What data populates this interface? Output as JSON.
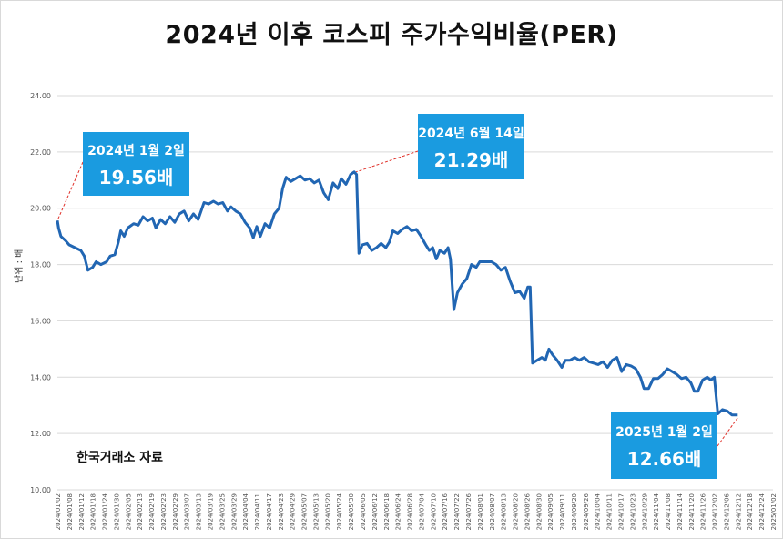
{
  "title": "2024년 이후 코스피 주가수익비율(PER)",
  "source_note": "한국거래소 자료",
  "chart_data": {
    "type": "line",
    "title": "2024년 이후 코스피 주가수익비율(PER)",
    "ylabel": "단위 : 배",
    "xlabel": "",
    "ylim": [
      10,
      24
    ],
    "yticks": [
      "10.00",
      "12.00",
      "14.00",
      "16.00",
      "18.00",
      "20.00",
      "22.00",
      "24.00"
    ],
    "grid": "horizontal",
    "line_color": "#2166b3",
    "x_tick_labels": [
      "2024/01/02",
      "2024/01/08",
      "2024/01/12",
      "2024/01/18",
      "2024/01/24",
      "2024/01/30",
      "2024/02/05",
      "2024/02/13",
      "2024/02/19",
      "2024/02/23",
      "2024/02/29",
      "2024/03/07",
      "2024/03/13",
      "2024/03/19",
      "2024/03/25",
      "2024/03/29",
      "2024/04/04",
      "2024/04/11",
      "2024/04/17",
      "2024/04/23",
      "2024/04/29",
      "2024/05/07",
      "2024/05/13",
      "2024/05/20",
      "2024/05/24",
      "2024/05/30",
      "2024/06/05",
      "2024/06/12",
      "2024/06/18",
      "2024/06/24",
      "2024/06/28",
      "2024/07/04",
      "2024/07/10",
      "2024/07/16",
      "2024/07/22",
      "2024/07/26",
      "2024/08/01",
      "2024/08/07",
      "2024/08/13",
      "2024/08/20",
      "2024/08/26",
      "2024/08/30",
      "2024/09/05",
      "2024/09/11",
      "2024/09/20",
      "2024/09/26",
      "2024/10/04",
      "2024/10/11",
      "2024/10/17",
      "2024/10/23",
      "2024/10/29",
      "2024/11/04",
      "2024/11/08",
      "2024/11/14",
      "2024/11/20",
      "2024/11/26",
      "2024/12/02",
      "2024/12/06",
      "2024/12/12",
      "2024/12/18",
      "2024/12/24",
      "2025/01/02"
    ],
    "points": [
      [
        0,
        19.56
      ],
      [
        0.1,
        19.3
      ],
      [
        0.3,
        19.0
      ],
      [
        0.7,
        18.85
      ],
      [
        1.0,
        18.7
      ],
      [
        1.5,
        18.6
      ],
      [
        2.0,
        18.5
      ],
      [
        2.3,
        18.3
      ],
      [
        2.6,
        17.8
      ],
      [
        3.0,
        17.9
      ],
      [
        3.3,
        18.1
      ],
      [
        3.7,
        18.0
      ],
      [
        4.2,
        18.1
      ],
      [
        4.5,
        18.3
      ],
      [
        4.9,
        18.35
      ],
      [
        5.2,
        18.8
      ],
      [
        5.4,
        19.2
      ],
      [
        5.7,
        19.0
      ],
      [
        6.0,
        19.3
      ],
      [
        6.5,
        19.45
      ],
      [
        6.9,
        19.4
      ],
      [
        7.3,
        19.7
      ],
      [
        7.7,
        19.55
      ],
      [
        8.1,
        19.65
      ],
      [
        8.4,
        19.3
      ],
      [
        8.8,
        19.6
      ],
      [
        9.2,
        19.45
      ],
      [
        9.6,
        19.7
      ],
      [
        10.0,
        19.5
      ],
      [
        10.4,
        19.8
      ],
      [
        10.8,
        19.9
      ],
      [
        11.2,
        19.55
      ],
      [
        11.6,
        19.8
      ],
      [
        12.0,
        19.6
      ],
      [
        12.5,
        20.2
      ],
      [
        12.9,
        20.15
      ],
      [
        13.3,
        20.25
      ],
      [
        13.7,
        20.15
      ],
      [
        14.1,
        20.2
      ],
      [
        14.5,
        19.9
      ],
      [
        14.8,
        20.05
      ],
      [
        15.2,
        19.9
      ],
      [
        15.6,
        19.8
      ],
      [
        16.0,
        19.5
      ],
      [
        16.4,
        19.3
      ],
      [
        16.7,
        18.95
      ],
      [
        17.0,
        19.35
      ],
      [
        17.3,
        19.0
      ],
      [
        17.7,
        19.45
      ],
      [
        18.1,
        19.3
      ],
      [
        18.5,
        19.8
      ],
      [
        18.9,
        20.0
      ],
      [
        19.2,
        20.7
      ],
      [
        19.5,
        21.1
      ],
      [
        19.9,
        20.95
      ],
      [
        20.3,
        21.05
      ],
      [
        20.7,
        21.15
      ],
      [
        21.1,
        21.0
      ],
      [
        21.5,
        21.05
      ],
      [
        21.9,
        20.9
      ],
      [
        22.3,
        21.0
      ],
      [
        22.7,
        20.55
      ],
      [
        23.1,
        20.3
      ],
      [
        23.5,
        20.9
      ],
      [
        23.9,
        20.7
      ],
      [
        24.2,
        21.05
      ],
      [
        24.6,
        20.85
      ],
      [
        25.0,
        21.2
      ],
      [
        25.3,
        21.29
      ],
      [
        25.5,
        21.2
      ],
      [
        25.7,
        18.4
      ],
      [
        26.0,
        18.7
      ],
      [
        26.4,
        18.75
      ],
      [
        26.8,
        18.5
      ],
      [
        27.2,
        18.6
      ],
      [
        27.6,
        18.75
      ],
      [
        28.0,
        18.6
      ],
      [
        28.3,
        18.8
      ],
      [
        28.6,
        19.2
      ],
      [
        29.0,
        19.1
      ],
      [
        29.4,
        19.25
      ],
      [
        29.8,
        19.35
      ],
      [
        30.2,
        19.2
      ],
      [
        30.6,
        19.25
      ],
      [
        31.0,
        19.0
      ],
      [
        31.4,
        18.7
      ],
      [
        31.7,
        18.5
      ],
      [
        32.0,
        18.6
      ],
      [
        32.3,
        18.2
      ],
      [
        32.6,
        18.5
      ],
      [
        33.0,
        18.4
      ],
      [
        33.3,
        18.6
      ],
      [
        33.5,
        18.2
      ],
      [
        33.8,
        16.4
      ],
      [
        34.1,
        17.0
      ],
      [
        34.5,
        17.3
      ],
      [
        34.9,
        17.5
      ],
      [
        35.3,
        18.0
      ],
      [
        35.7,
        17.9
      ],
      [
        36.0,
        18.1
      ],
      [
        36.5,
        18.1
      ],
      [
        37.0,
        18.1
      ],
      [
        37.4,
        18.0
      ],
      [
        37.8,
        17.8
      ],
      [
        38.2,
        17.9
      ],
      [
        38.6,
        17.4
      ],
      [
        39.0,
        17.0
      ],
      [
        39.4,
        17.05
      ],
      [
        39.8,
        16.8
      ],
      [
        40.1,
        17.2
      ],
      [
        40.3,
        17.2
      ],
      [
        40.5,
        14.5
      ],
      [
        40.9,
        14.6
      ],
      [
        41.3,
        14.7
      ],
      [
        41.6,
        14.6
      ],
      [
        41.9,
        15.0
      ],
      [
        42.2,
        14.8
      ],
      [
        42.6,
        14.6
      ],
      [
        43.0,
        14.35
      ],
      [
        43.3,
        14.6
      ],
      [
        43.7,
        14.6
      ],
      [
        44.1,
        14.7
      ],
      [
        44.5,
        14.6
      ],
      [
        44.9,
        14.7
      ],
      [
        45.3,
        14.55
      ],
      [
        45.7,
        14.5
      ],
      [
        46.1,
        14.45
      ],
      [
        46.5,
        14.55
      ],
      [
        46.9,
        14.35
      ],
      [
        47.3,
        14.6
      ],
      [
        47.7,
        14.7
      ],
      [
        48.1,
        14.2
      ],
      [
        48.5,
        14.45
      ],
      [
        48.9,
        14.4
      ],
      [
        49.3,
        14.3
      ],
      [
        49.7,
        14.0
      ],
      [
        50.0,
        13.6
      ],
      [
        50.4,
        13.6
      ],
      [
        50.8,
        13.95
      ],
      [
        51.2,
        13.95
      ],
      [
        51.6,
        14.1
      ],
      [
        52.0,
        14.3
      ],
      [
        52.4,
        14.2
      ],
      [
        52.8,
        14.1
      ],
      [
        53.2,
        13.95
      ],
      [
        53.6,
        14.0
      ],
      [
        54.0,
        13.8
      ],
      [
        54.3,
        13.5
      ],
      [
        54.6,
        13.5
      ],
      [
        55.0,
        13.9
      ],
      [
        55.4,
        14.0
      ],
      [
        55.7,
        13.9
      ],
      [
        56.0,
        14.0
      ],
      [
        56.3,
        12.7
      ],
      [
        56.7,
        12.85
      ],
      [
        57.1,
        12.8
      ],
      [
        57.5,
        12.66
      ],
      [
        58.0,
        12.66
      ]
    ],
    "annotations": [
      {
        "date": "2024년 1월 2일",
        "value": "19.56배"
      },
      {
        "date": "2024년 6월 14일",
        "value": "21.29배"
      },
      {
        "date": "2025년 1월 2일",
        "value": "12.66배"
      }
    ]
  }
}
